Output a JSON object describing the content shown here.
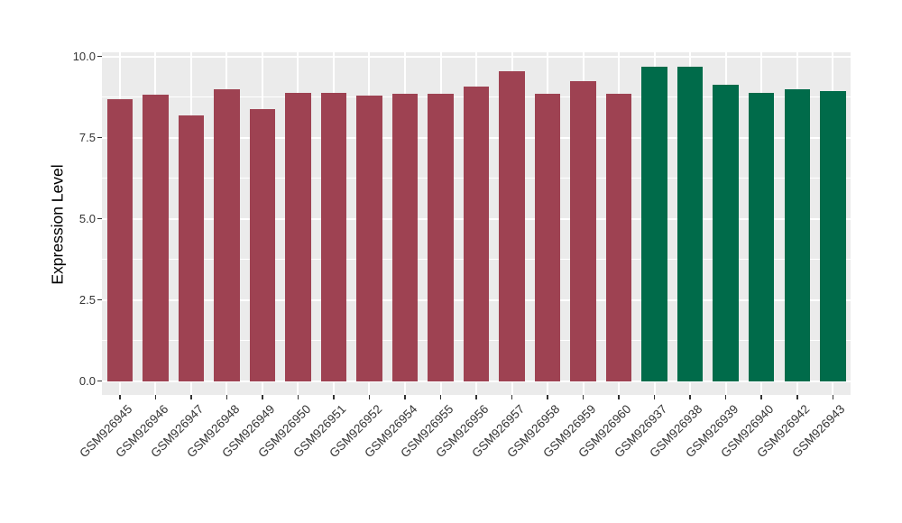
{
  "chart_data": {
    "type": "bar",
    "title": "",
    "xlabel": "",
    "ylabel": "Expression Level",
    "ylim": [
      0,
      10.13
    ],
    "grid": true,
    "legend": "none",
    "yticks": [
      {
        "v": 0.0,
        "label": "0.0"
      },
      {
        "v": 2.5,
        "label": "2.5"
      },
      {
        "v": 5.0,
        "label": "5.0"
      },
      {
        "v": 7.5,
        "label": "7.5"
      },
      {
        "v": 10.0,
        "label": "10.0"
      }
    ],
    "minor_yticks": [
      1.25,
      3.75,
      6.25,
      8.75
    ],
    "bars": [
      {
        "label": "GSM926945",
        "value": 8.67,
        "group": "group1"
      },
      {
        "label": "GSM926946",
        "value": 8.83,
        "group": "group1"
      },
      {
        "label": "GSM926947",
        "value": 8.19,
        "group": "group1"
      },
      {
        "label": "GSM926948",
        "value": 9.0,
        "group": "group1"
      },
      {
        "label": "GSM926949",
        "value": 8.39,
        "group": "group1"
      },
      {
        "label": "GSM926950",
        "value": 8.88,
        "group": "group1"
      },
      {
        "label": "GSM926951",
        "value": 8.88,
        "group": "group1"
      },
      {
        "label": "GSM926952",
        "value": 8.78,
        "group": "group1"
      },
      {
        "label": "GSM926954",
        "value": 8.85,
        "group": "group1"
      },
      {
        "label": "GSM926955",
        "value": 8.85,
        "group": "group1"
      },
      {
        "label": "GSM926956",
        "value": 9.07,
        "group": "group1"
      },
      {
        "label": "GSM926957",
        "value": 9.54,
        "group": "group1"
      },
      {
        "label": "GSM926958",
        "value": 8.86,
        "group": "group1"
      },
      {
        "label": "GSM926959",
        "value": 9.24,
        "group": "group1"
      },
      {
        "label": "GSM926960",
        "value": 8.84,
        "group": "group1"
      },
      {
        "label": "GSM926937",
        "value": 9.69,
        "group": "group2"
      },
      {
        "label": "GSM926938",
        "value": 9.68,
        "group": "group2"
      },
      {
        "label": "GSM926939",
        "value": 9.13,
        "group": "group2"
      },
      {
        "label": "GSM926940",
        "value": 8.87,
        "group": "group2"
      },
      {
        "label": "GSM926942",
        "value": 8.99,
        "group": "group2"
      },
      {
        "label": "GSM926943",
        "value": 8.93,
        "group": "group2"
      }
    ],
    "group_colors": {
      "group1": "#9E4252",
      "group2": "#006B4A"
    },
    "colors": {
      "panel_background": "#EBEBEB",
      "gridline": "#FFFFFF",
      "axis_text": "#333333",
      "axis_title": "#000000",
      "tick_mark": "#333333"
    }
  }
}
